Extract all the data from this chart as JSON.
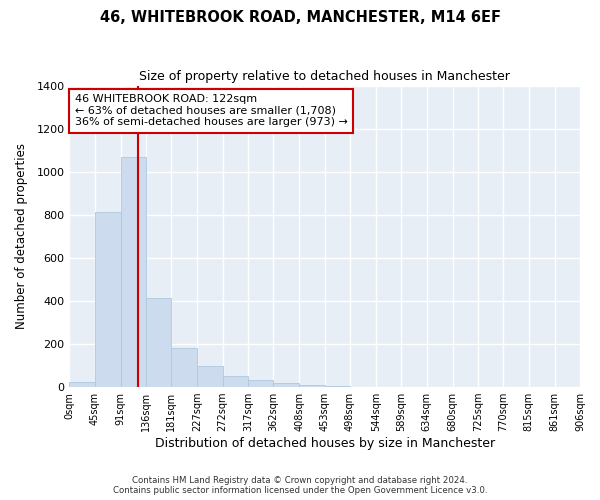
{
  "title": "46, WHITEBROOK ROAD, MANCHESTER, M14 6EF",
  "subtitle": "Size of property relative to detached houses in Manchester",
  "xlabel": "Distribution of detached houses by size in Manchester",
  "ylabel": "Number of detached properties",
  "bar_color": "#ccdcee",
  "bar_edgecolor": "#aec8de",
  "vline_x": 122,
  "vline_color": "#cc0000",
  "annotation_text": "46 WHITEBROOK ROAD: 122sqm\n← 63% of detached houses are smaller (1,708)\n36% of semi-detached houses are larger (973) →",
  "annotation_box_facecolor": "#ffffff",
  "annotation_box_edgecolor": "#cc0000",
  "bins": [
    0,
    45,
    91,
    136,
    181,
    227,
    272,
    317,
    362,
    408,
    453,
    498,
    544,
    589,
    634,
    680,
    725,
    770,
    815,
    861,
    906
  ],
  "bar_heights": [
    22,
    812,
    1068,
    412,
    182,
    100,
    52,
    35,
    20,
    10,
    5,
    1,
    0,
    0,
    0,
    0,
    0,
    0,
    0,
    0
  ],
  "ylim": [
    0,
    1400
  ],
  "yticks": [
    0,
    200,
    400,
    600,
    800,
    1000,
    1200,
    1400
  ],
  "background_color": "#ffffff",
  "plot_bg_color": "#e8eef6",
  "grid_color": "#ffffff",
  "footer_line1": "Contains HM Land Registry data © Crown copyright and database right 2024.",
  "footer_line2": "Contains public sector information licensed under the Open Government Licence v3.0."
}
